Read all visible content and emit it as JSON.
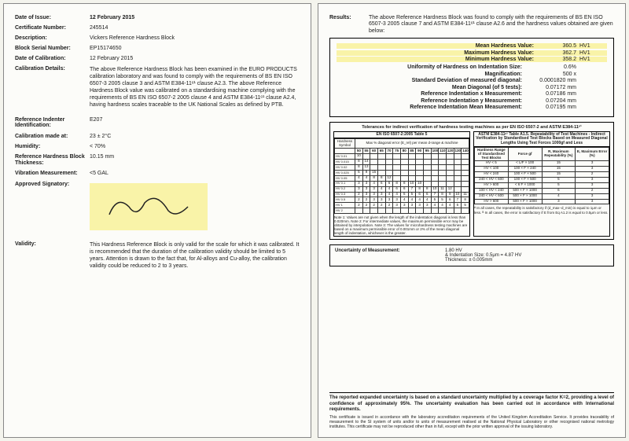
{
  "left": {
    "dateIssue": {
      "label": "Date of Issue:",
      "value": "12 February 2015"
    },
    "certNo": {
      "label": "Certificate Number:",
      "value": "245514"
    },
    "description": {
      "label": "Description:",
      "value": "Vickers Reference Hardness Block"
    },
    "blockSerial": {
      "label": "Block Serial Number:",
      "value": "EP15174650"
    },
    "dateCal": {
      "label": "Date of Calibration:",
      "value": "12 February 2015"
    },
    "calDetails": {
      "label": "Calibration Details:",
      "value": "The above Reference Hardness Block has been examined in the EURO PRODUCTS calibration laboratory and was found to comply with the requirements of BS EN ISO 6507-3 2005 clause 3 and ASTM E384-11ᵉ¹ clause A2.3. The above Reference Hardness Block value was calibrated on a standardising machine complying with the requirements of BS EN ISO 6507-2 2005 clause 4 and ASTM E384-11ᵉ¹ clause A2.4, having hardness scales traceable to the UK National Scales as defined by PTB."
    },
    "indenter": {
      "label": "Reference Indenter Identification:",
      "value": "E207"
    },
    "calAt": {
      "label": "Calibration made at:",
      "value": "23 ± 2°C"
    },
    "humidity": {
      "label": "Humidity:",
      "value": "< 70%"
    },
    "thickness": {
      "label": "Reference Hardness Block Thickness:",
      "value": "10.15 mm"
    },
    "vibration": {
      "label": "Vibration Measurement:",
      "value": "<5 GAL"
    },
    "signatory": {
      "label": "Approved Signatory:"
    },
    "validity": {
      "label": "Validity:",
      "value": "This Hardness Reference Block is only valid for the scale for which it was calibrated. It is recommended that the duration of the calibration validity should be limited to 5 years. Attention is drawn to the fact that, for Al-alloys and Cu-alloy, the calibration validity could be reduced to 2 to 3 years."
    }
  },
  "right": {
    "resultsLabel": "Results:",
    "resultsIntro": "The above Reference Hardness Block was found to comply with the requirements of BS EN ISO 6507-3 2005 clause 7 and ASTM E384-11ᵉ¹ clause A2.6 and the hardness values obtained are given below:",
    "mean": {
      "k": "Mean Hardness Value:",
      "v": "360.5",
      "u": "HV1"
    },
    "max": {
      "k": "Maximum Hardness Value:",
      "v": "362.7",
      "u": "HV1"
    },
    "min": {
      "k": "Minimum Hardness Value:",
      "v": "358.2",
      "u": "HV1"
    },
    "rows": [
      {
        "k": "Uniformity of Hardness on Indentation Size:",
        "v": "0.6%"
      },
      {
        "k": "Magnification:",
        "v": "500 x"
      },
      {
        "k": "Standard Deviation of measured diagonal:",
        "v": "0.0001820 mm"
      },
      {
        "k": "Mean Diagonal (of 5 tests):",
        "v": "0.07172 mm"
      },
      {
        "k": "Reference Indentation x Measurement:",
        "v": "0.07186 mm"
      },
      {
        "k": "Reference Indentation y Measurement:",
        "v": "0.07204 mm"
      },
      {
        "k": "Reference Indentation Mean Measurement:",
        "v": "0.07195 mm"
      }
    ],
    "tolTitle": "Tolerances for indirect verification of hardness testing machines as per EN ISO 6507-2 and ASTM E384-11ᵉ¹",
    "leftTblTitle": "EN ISO 6507-2:2005 Table 5",
    "leftTblSub": "Max % diagonal error (E_rel) per mean d-range & machine",
    "rightTblTitle": "ASTM E384-11ᵉ¹ Table A1.5. Repeatability of Test Machines - Indirect Verification by Standardised Test Blocks Based on Measured Diagonal Lengths Using Test Forces 1000gf and Less",
    "hardnessRows": [
      "HV 0.01",
      "HV 0.015",
      "HV 0.02",
      "HV 0.025",
      "HV 0.05",
      "HV 0.1",
      "HV 0.2",
      "HV 0.3",
      "HV 0.5",
      "HV 1",
      "HV 2"
    ],
    "diagCols": [
      "50",
      "55",
      "60",
      "65",
      "70",
      "75",
      "80",
      "85",
      "90",
      "95",
      "100",
      "110",
      "120",
      "130",
      "140"
    ],
    "leftData": [
      [
        "10",
        "",
        "",
        "",
        "",
        "",
        "",
        "",
        "",
        "",
        "",
        "",
        "",
        "",
        ""
      ],
      [
        "8",
        "14",
        "",
        "",
        "",
        "",
        "",
        "",
        "",
        "",
        "",
        "",
        "",
        "",
        ""
      ],
      [
        "8",
        "13",
        "",
        "",
        "",
        "",
        "",
        "",
        "",
        "",
        "",
        "",
        "",
        "",
        ""
      ],
      [
        "5",
        "9",
        "15",
        "",
        "",
        "",
        "",
        "",
        "",
        "",
        "",
        "",
        "",
        "",
        ""
      ],
      [
        "4",
        "4",
        "8",
        "8",
        "12",
        "",
        "",
        "",
        "",
        "",
        "",
        "",
        "",
        "",
        ""
      ],
      [
        "3",
        "3",
        "4",
        "6",
        "6",
        "8",
        "8",
        "10",
        "10",
        "",
        "",
        "",
        "",
        "",
        ""
      ],
      [
        "3",
        "3",
        "3",
        "4",
        "4",
        "6",
        "6",
        "7",
        "8",
        "8",
        "10",
        "11",
        "12",
        "",
        ""
      ],
      [
        "2",
        "3",
        "3",
        "3",
        "4",
        "4",
        "5",
        "5",
        "6",
        "6",
        "7",
        "8",
        "9",
        "10",
        "11"
      ],
      [
        "2",
        "2",
        "3",
        "3",
        "3",
        "3",
        "4",
        "4",
        "4",
        "4",
        "5",
        "5",
        "6",
        "7",
        "8"
      ],
      [
        "2",
        "2",
        "2",
        "2",
        "2",
        "3",
        "3",
        "3",
        "3",
        "3",
        "4",
        "4",
        "4",
        "5",
        "5"
      ],
      [
        "",
        "",
        "",
        "",
        "",
        "",
        "",
        "",
        "",
        "",
        "",
        "",
        "",
        "",
        ""
      ]
    ],
    "notes": "Note 1: Values are not given when the length of the indentation diagonal is less than 0.020mm.\nNote 2: For intermediate values, the maximum permissible error may be obtained by interpolation.\nNote 3: The values for microhardness testing machines are based on a maximum permissible error of 0.001mm or 2% of the mean diagonal length of indentation, whichever is the greater.",
    "astmRows": [
      {
        "a": "HV < 5",
        "b": "< L/F × 100",
        "r": "15",
        "e": "3"
      },
      {
        "a": "HV < 100",
        "b": "100 × F × 240",
        "r": "15",
        "e": "3"
      },
      {
        "a": "HV < 240",
        "b": "100 × F × 500",
        "r": "15",
        "e": "2"
      },
      {
        "a": "240 < HV < 600",
        "b": "100 × F × 500",
        "r": "5",
        "e": "3"
      },
      {
        "a": "HV > 600",
        "b": "< 6 F × 1000",
        "r": "5",
        "e": "3"
      },
      {
        "a": "100 < HV < 240",
        "b": "500 × F × 1000",
        "r": "6",
        "e": "2"
      },
      {
        "a": "240 < HV < 600",
        "b": "500 × F × 1000",
        "r": "4",
        "e": "3"
      },
      {
        "a": "HV > 600",
        "b": "500 × F × 1000",
        "r": "3",
        "e": "3"
      }
    ],
    "astmFoot": "ᴬ In all cases, the repeatability is satisfactory if (d_max−d_min) is equal to 1μm or less.\nᴮ In all cases, the error is satisfactory if E from Eq A1.2 is equal to 0.5μm or less.",
    "uncert": {
      "label": "Uncertainty of Measurement:",
      "v1": "1.80 HV",
      "v2": "& Indentation Size: 0.5μm = 4.87 HV",
      "v3": "Thickness: ± 0.005mm"
    },
    "footerBold": "The reported expanded uncertainty is based on a standard uncertainty multiplied by a coverage factor K=2, providing a level of confidence of approximately 95%. The uncertainty evaluation has been carried out in accordance with International requirements.",
    "footerSmall": "This certificate is issued in accordance with the laboratory accreditation requirements of the United Kingdom Accreditation Service. It provides traceability of measurement to the SI system of units and/or to units of measurement realised at the National Physical Laboratory or other recognised national metrology institutes. This certificate may not be reproduced other than in full, except with the prior written approval of the issuing laboratory."
  }
}
